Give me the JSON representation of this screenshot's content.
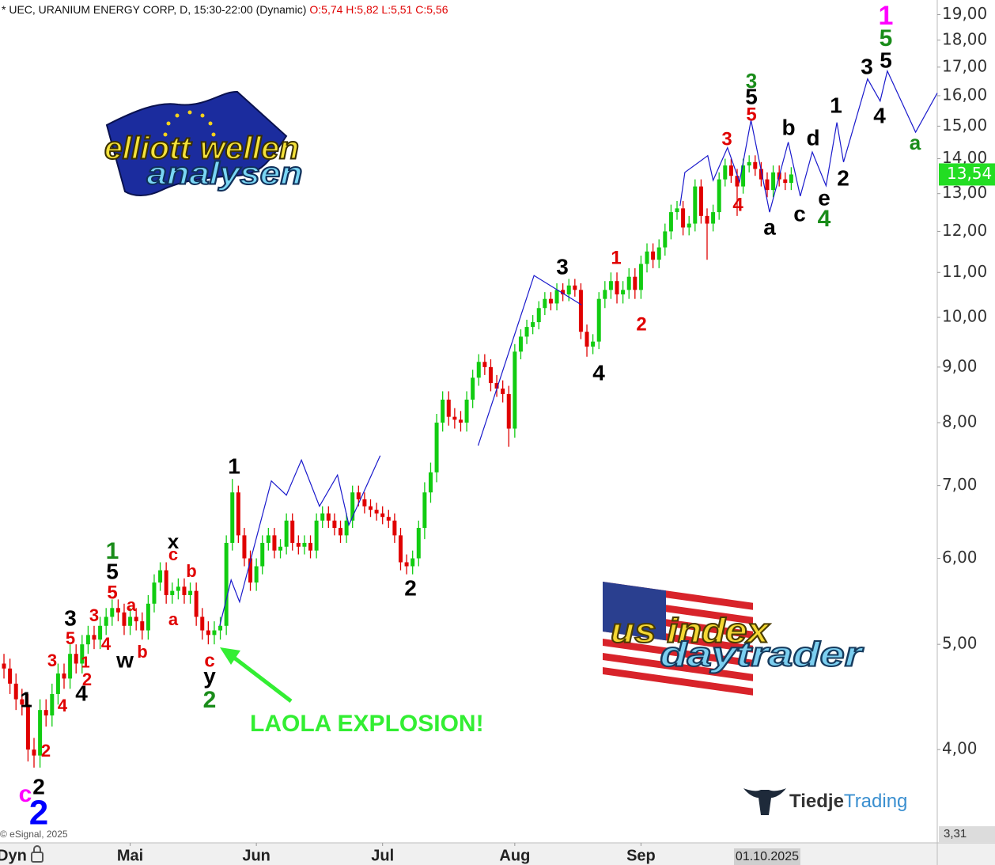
{
  "chart_data": {
    "type": "candlestick",
    "title": "* UEC, URANIUM ENERGY CORP, D, 15:30-22:00 (Dynamic)",
    "subtitle": "O:5,74 H:5,82 L:5,51 C:5,56",
    "source": "© eSignal, 2025",
    "up_color": "#11cc11",
    "down_color": "#e00000",
    "log_scale": true,
    "ylim": [
      3.31,
      19.6
    ],
    "yticks": [
      {
        "value": 19,
        "label": "19,00"
      },
      {
        "value": 18,
        "label": "18,00"
      },
      {
        "value": 17,
        "label": "17,00"
      },
      {
        "value": 16,
        "label": "16,00"
      },
      {
        "value": 15,
        "label": "15,00"
      },
      {
        "value": 14,
        "label": "14,00"
      },
      {
        "value": 13,
        "label": "13,00"
      },
      {
        "value": 12,
        "label": "12,00"
      },
      {
        "value": 11,
        "label": "11,00"
      },
      {
        "value": 10,
        "label": "10,00"
      },
      {
        "value": 9,
        "label": "9,00"
      },
      {
        "value": 8,
        "label": "8,00"
      },
      {
        "value": 7,
        "label": "7,00"
      },
      {
        "value": 6,
        "label": "6,00"
      },
      {
        "value": 5,
        "label": "5,00"
      },
      {
        "value": 4,
        "label": "4,00"
      }
    ],
    "xlim": [
      -0.66,
      155.3
    ],
    "xticks": [
      {
        "value": 21,
        "label": "Mai"
      },
      {
        "value": 42,
        "label": "Jun"
      },
      {
        "value": 63,
        "label": "Jul"
      },
      {
        "value": 85,
        "label": "Aug"
      },
      {
        "value": 106,
        "label": "Sep"
      }
    ],
    "x_axis_left_label": "Dyn",
    "cursor_date": {
      "value": 127,
      "label": "01.10.2025"
    },
    "last_price": {
      "value": 13.54,
      "label": "13,54"
    },
    "bottom_price": {
      "value": 3.31,
      "label": "3,31"
    },
    "x": [
      0,
      1,
      2,
      3,
      4,
      5,
      6,
      7,
      8,
      9,
      10,
      11,
      12,
      13,
      14,
      15,
      16,
      17,
      18,
      19,
      20,
      21,
      22,
      23,
      24,
      25,
      26,
      27,
      28,
      29,
      30,
      31,
      32,
      33,
      34,
      35,
      36,
      37,
      38,
      39,
      40,
      41,
      42,
      43,
      44,
      45,
      46,
      47,
      48,
      49,
      50,
      51,
      52,
      53,
      54,
      55,
      56,
      57,
      58,
      59,
      60,
      61,
      62,
      63,
      64,
      65,
      66,
      67,
      68,
      69,
      70,
      71,
      72,
      73,
      74,
      75,
      76,
      77,
      78,
      79,
      80,
      81,
      82,
      83,
      84,
      85,
      86,
      87,
      88,
      89,
      90,
      91,
      92,
      93,
      94,
      95,
      96,
      97,
      98,
      99,
      100,
      101,
      102,
      103,
      104,
      105,
      106,
      107,
      108,
      109,
      110,
      111,
      112,
      113,
      114,
      115,
      116,
      117,
      118,
      119,
      120,
      121,
      122,
      123,
      124,
      125,
      126,
      127,
      128,
      129,
      130,
      131
    ],
    "open": [
      4.8,
      4.75,
      4.6,
      4.45,
      4.4,
      4.0,
      3.95,
      4.35,
      4.3,
      4.5,
      4.7,
      4.65,
      4.9,
      4.8,
      5.0,
      5.1,
      5.05,
      5.2,
      5.3,
      5.4,
      5.35,
      5.2,
      5.3,
      5.25,
      5.15,
      5.45,
      5.7,
      5.85,
      5.55,
      5.6,
      5.65,
      5.55,
      5.6,
      5.3,
      5.15,
      5.1,
      5.15,
      5.2,
      6.2,
      6.9,
      6.3,
      6.0,
      5.7,
      5.9,
      6.2,
      6.3,
      6.1,
      6.15,
      6.5,
      6.2,
      6.15,
      6.2,
      6.1,
      6.5,
      6.6,
      6.5,
      6.4,
      6.3,
      6.5,
      6.9,
      6.8,
      6.7,
      6.65,
      6.6,
      6.55,
      6.5,
      6.3,
      5.95,
      5.9,
      6.0,
      6.4,
      6.9,
      7.2,
      8.0,
      8.4,
      8.1,
      8.05,
      8.0,
      8.4,
      8.8,
      9.1,
      9.0,
      8.7,
      8.6,
      8.5,
      7.9,
      9.3,
      9.6,
      9.8,
      9.9,
      10.2,
      10.4,
      10.3,
      10.6,
      10.5,
      10.7,
      10.6,
      9.7,
      9.4,
      9.5,
      10.4,
      10.6,
      10.8,
      10.5,
      10.6,
      10.9,
      10.6,
      11.2,
      11.5,
      11.3,
      11.6,
      12.0,
      12.5,
      12.6,
      12.1,
      12.2,
      13.2,
      12.4,
      12.2,
      12.5,
      13.4,
      13.8,
      13.5,
      13.2,
      13.8,
      13.9,
      13.7,
      13.4,
      13.1,
      13.6,
      13.4,
      13.3
    ],
    "high": [
      4.9,
      4.85,
      4.7,
      4.55,
      4.5,
      4.1,
      4.45,
      4.45,
      4.6,
      4.8,
      4.8,
      5.0,
      5.0,
      5.1,
      5.2,
      5.2,
      5.3,
      5.4,
      5.5,
      5.5,
      5.45,
      5.4,
      5.4,
      5.35,
      5.55,
      5.8,
      5.95,
      5.95,
      5.7,
      5.75,
      5.75,
      5.7,
      5.7,
      5.4,
      5.25,
      5.25,
      5.3,
      6.3,
      7.1,
      7.0,
      6.4,
      6.1,
      6.0,
      6.3,
      6.4,
      6.4,
      6.25,
      6.6,
      6.6,
      6.3,
      6.3,
      6.3,
      6.6,
      6.7,
      6.7,
      6.6,
      6.5,
      6.6,
      7.0,
      7.0,
      6.9,
      6.8,
      6.75,
      6.7,
      6.65,
      6.6,
      6.4,
      6.05,
      6.1,
      6.5,
      7.05,
      7.35,
      8.15,
      8.55,
      8.55,
      8.25,
      8.2,
      8.55,
      8.95,
      9.25,
      9.25,
      9.15,
      8.85,
      8.75,
      8.65,
      9.45,
      9.75,
      9.95,
      10.05,
      10.35,
      10.55,
      10.55,
      10.75,
      10.75,
      10.85,
      10.85,
      10.75,
      9.85,
      9.65,
      10.55,
      10.8,
      11.0,
      11.0,
      10.8,
      11.1,
      11.1,
      11.4,
      11.7,
      11.7,
      11.8,
      12.2,
      12.7,
      12.8,
      12.8,
      12.4,
      13.4,
      13.4,
      12.6,
      12.7,
      13.6,
      14.0,
      14.0,
      13.7,
      14.0,
      14.1,
      14.1,
      13.9,
      13.6,
      13.8,
      13.8,
      13.6,
      13.75
    ],
    "low": [
      4.65,
      4.5,
      4.35,
      4.3,
      3.9,
      3.85,
      3.85,
      4.2,
      4.2,
      4.4,
      4.55,
      4.55,
      4.7,
      4.7,
      4.9,
      4.95,
      4.95,
      5.1,
      5.2,
      5.25,
      5.1,
      5.1,
      5.15,
      5.05,
      5.05,
      5.35,
      5.6,
      5.45,
      5.45,
      5.5,
      5.45,
      5.45,
      5.2,
      5.05,
      5.0,
      5.0,
      5.05,
      5.1,
      6.1,
      6.2,
      5.9,
      5.6,
      5.6,
      5.8,
      6.1,
      6.0,
      6.0,
      6.05,
      6.1,
      6.05,
      6.05,
      6.0,
      6.0,
      6.4,
      6.4,
      6.3,
      6.2,
      6.2,
      6.4,
      6.7,
      6.6,
      6.55,
      6.5,
      6.45,
      6.4,
      6.2,
      5.85,
      5.8,
      5.8,
      5.9,
      6.25,
      6.75,
      7.05,
      7.85,
      7.95,
      7.9,
      7.85,
      7.85,
      8.25,
      8.65,
      8.85,
      8.55,
      8.45,
      8.35,
      7.6,
      7.75,
      9.15,
      9.45,
      9.65,
      9.75,
      10.05,
      10.15,
      10.15,
      10.35,
      10.35,
      10.45,
      9.55,
      9.2,
      9.25,
      9.35,
      10.2,
      10.4,
      10.3,
      10.3,
      10.4,
      10.4,
      10.4,
      11.0,
      11.1,
      11.1,
      11.4,
      11.8,
      12.3,
      11.9,
      11.9,
      12.0,
      12.2,
      11.3,
      12.0,
      12.3,
      13.2,
      13.3,
      12.4,
      13.0,
      13.6,
      13.5,
      13.2,
      12.9,
      12.9,
      13.2,
      13.1,
      13.1
    ],
    "close": [
      4.75,
      4.6,
      4.45,
      4.4,
      4.0,
      3.95,
      4.35,
      4.3,
      4.5,
      4.7,
      4.65,
      4.9,
      4.8,
      5.0,
      5.1,
      5.05,
      5.2,
      5.3,
      5.4,
      5.35,
      5.2,
      5.3,
      5.25,
      5.15,
      5.45,
      5.7,
      5.85,
      5.55,
      5.6,
      5.65,
      5.55,
      5.6,
      5.3,
      5.15,
      5.1,
      5.15,
      5.2,
      6.2,
      6.9,
      6.3,
      6.0,
      5.7,
      5.9,
      6.2,
      6.3,
      6.1,
      6.15,
      6.5,
      6.2,
      6.15,
      6.2,
      6.1,
      6.5,
      6.6,
      6.5,
      6.4,
      6.3,
      6.5,
      6.9,
      6.8,
      6.7,
      6.65,
      6.6,
      6.55,
      6.5,
      6.3,
      5.95,
      5.9,
      6.0,
      6.4,
      6.9,
      7.2,
      8.0,
      8.4,
      8.1,
      8.05,
      8.0,
      8.4,
      8.8,
      9.1,
      9.0,
      8.7,
      8.6,
      8.5,
      7.9,
      9.3,
      9.6,
      9.8,
      9.9,
      10.2,
      10.4,
      10.3,
      10.6,
      10.5,
      10.7,
      10.6,
      9.7,
      9.4,
      9.5,
      10.4,
      10.6,
      10.8,
      10.5,
      10.6,
      10.9,
      10.6,
      11.2,
      11.5,
      11.3,
      11.6,
      12.0,
      12.5,
      12.6,
      12.1,
      12.2,
      13.2,
      12.4,
      12.2,
      12.5,
      13.4,
      13.8,
      13.5,
      13.2,
      13.8,
      13.9,
      13.7,
      13.4,
      13.1,
      13.6,
      13.4,
      13.3,
      13.54
    ],
    "projection": {
      "color": "#1a1acc",
      "x": [
        35.9,
        37.8,
        39.2,
        44.5,
        47.0,
        49.5,
        52.5,
        55.5,
        57.4,
        62.6,
        null,
        78.9,
        88.2,
        96.1,
        null,
        112.5,
        113.3,
        117.1,
        118.0,
        120.4,
        122.4,
        124.3,
        127.4,
        130.5,
        132.5,
        134.5,
        136.8,
        138.6,
        139.7,
        143.7,
        145.8,
        147.0,
        151.7,
        155.3
      ],
      "values": [
        5.2,
        5.73,
        5.47,
        7.07,
        6.86,
        7.39,
        6.7,
        7.16,
        6.44,
        7.46,
        null,
        7.62,
        10.93,
        10.27,
        null,
        12.67,
        13.6,
        14.09,
        13.37,
        14.33,
        13.33,
        15.19,
        12.5,
        14.5,
        12.93,
        14.2,
        13.22,
        15.12,
        13.9,
        16.58,
        15.82,
        16.86,
        14.81,
        16.09
      ]
    },
    "annotations": [
      {
        "text": "1",
        "color": "#ff00ff"
      },
      {
        "text": "5",
        "color": "#1a8c1a"
      },
      {
        "text": "3",
        "color": "#000000"
      },
      {
        "text": "5",
        "color": "#000000"
      },
      {
        "text": "4",
        "color": "#000000"
      },
      {
        "text": "a",
        "color": "#1a8c1a"
      },
      {
        "text": "1",
        "color": "#000000"
      },
      {
        "text": "d",
        "color": "#000000"
      },
      {
        "text": "2",
        "color": "#000000"
      },
      {
        "text": "b",
        "color": "#000000"
      },
      {
        "text": "e",
        "color": "#000000"
      },
      {
        "text": "c",
        "color": "#000000"
      },
      {
        "text": "4",
        "color": "#1a8c1a"
      },
      {
        "text": "a",
        "color": "#000000"
      },
      {
        "text": "3",
        "color": "#1a8c1a"
      },
      {
        "text": "5",
        "color": "#000000"
      },
      {
        "text": "5",
        "color": "#e00000"
      },
      {
        "text": "3",
        "color": "#e00000"
      },
      {
        "text": "4",
        "color": "#e00000"
      },
      {
        "text": "3",
        "color": "#000000"
      },
      {
        "text": "1",
        "color": "#e00000"
      },
      {
        "text": "2",
        "color": "#e00000"
      },
      {
        "text": "4",
        "color": "#000000"
      },
      {
        "text": "1",
        "color": "#000000"
      },
      {
        "text": "2",
        "color": "#000000"
      },
      {
        "text": "c",
        "color": "#e00000"
      },
      {
        "text": "y",
        "color": "#000000"
      },
      {
        "text": "2",
        "color": "#1a8c1a"
      },
      {
        "text": "x",
        "color": "#000000"
      },
      {
        "text": "c",
        "color": "#e00000"
      },
      {
        "text": "b",
        "color": "#e00000"
      },
      {
        "text": "a",
        "color": "#e00000"
      },
      {
        "text": "a",
        "color": "#e00000"
      },
      {
        "text": "b",
        "color": "#e00000"
      },
      {
        "text": "w",
        "color": "#000000"
      },
      {
        "text": "1",
        "color": "#1a8c1a"
      },
      {
        "text": "5",
        "color": "#000000"
      },
      {
        "text": "5",
        "color": "#e00000"
      },
      {
        "text": "3",
        "color": "#e00000"
      },
      {
        "text": "4",
        "color": "#e00000"
      },
      {
        "text": "3",
        "color": "#000000"
      },
      {
        "text": "5",
        "color": "#e00000"
      },
      {
        "text": "1",
        "color": "#e00000"
      },
      {
        "text": "2",
        "color": "#e00000"
      },
      {
        "text": "4",
        "color": "#000000"
      },
      {
        "text": "3",
        "color": "#e00000"
      },
      {
        "text": "4",
        "color": "#e00000"
      },
      {
        "text": "1",
        "color": "#000000"
      },
      {
        "text": "2",
        "color": "#e00000"
      },
      {
        "text": "2",
        "color": "#000000"
      },
      {
        "text": "c",
        "color": "#ff00ff"
      },
      {
        "text": "2",
        "color": "#0000ff"
      }
    ],
    "callout": {
      "text": "LAOLA EXPLOSION!",
      "color": "#33ee33"
    }
  },
  "logos": {
    "elliott": [
      "elliott wellen",
      "analysen"
    ],
    "us_index": [
      "us index",
      "daytrader"
    ],
    "tiedje": [
      "Tiedje",
      "Trading"
    ]
  }
}
